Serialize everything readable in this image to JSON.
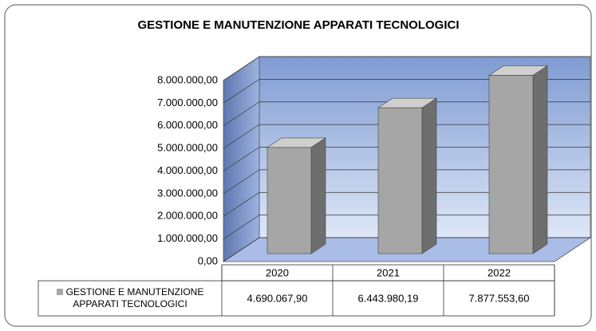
{
  "chart_data": {
    "type": "bar",
    "title": "GESTIONE E MANUTENZIONE APPARATI TECNOLOGICI",
    "categories": [
      "2020",
      "2021",
      "2022"
    ],
    "series": [
      {
        "name": "GESTIONE E MANUTENZIONE APPARATI TECNOLOGICI",
        "color": "#a6a6a6",
        "values": [
          4690067.9,
          6443980.19,
          7877553.6
        ],
        "value_labels": [
          "4.690.067,90",
          "6.443.980,19",
          "7.877.553,60"
        ]
      }
    ],
    "ylim": [
      0,
      8000000
    ],
    "yticks": [
      {
        "value": 0,
        "label": "0,00"
      },
      {
        "value": 1000000,
        "label": "1.000.000,00"
      },
      {
        "value": 2000000,
        "label": "2.000.000,00"
      },
      {
        "value": 3000000,
        "label": "3.000.000,00"
      },
      {
        "value": 4000000,
        "label": "4.000.000,00"
      },
      {
        "value": 5000000,
        "label": "5.000.000,00"
      },
      {
        "value": 6000000,
        "label": "6.000.000,00"
      },
      {
        "value": 7000000,
        "label": "7.000.000,00"
      },
      {
        "value": 8000000,
        "label": "8.000.000,00"
      }
    ],
    "grid": true
  }
}
